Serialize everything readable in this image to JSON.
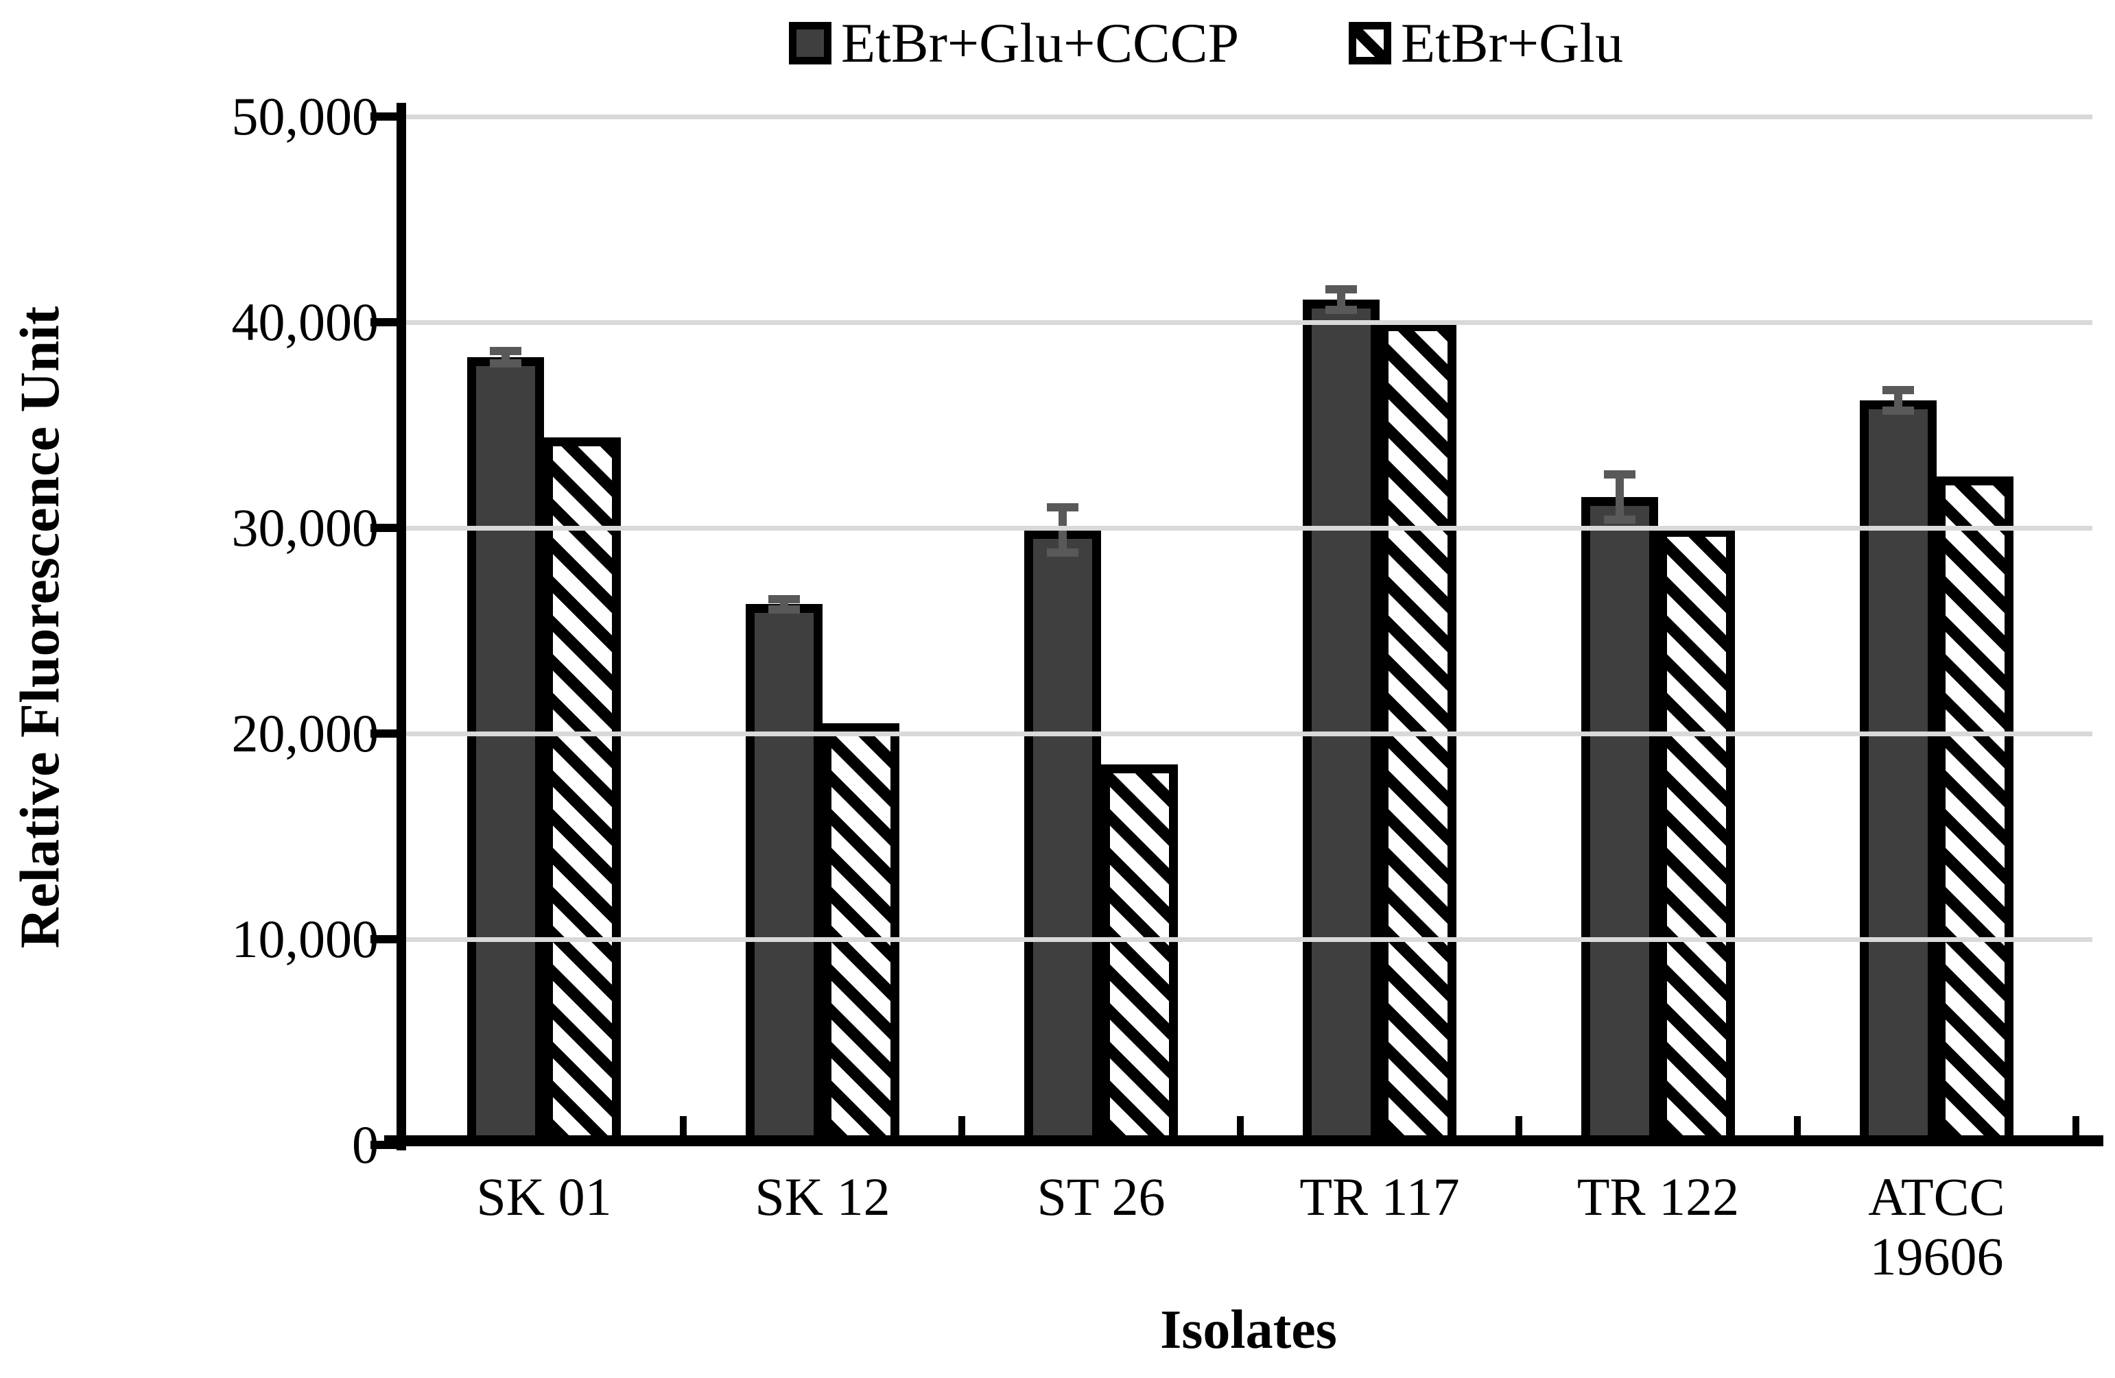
{
  "chart_data": {
    "type": "bar",
    "title": "",
    "categories": [
      "SK 01",
      "SK 12",
      "ST 26",
      "TR 117",
      "TR 122",
      "ATCC\n19606"
    ],
    "series": [
      {
        "name": "EtBr+Glu+CCCP",
        "style": "solid-dark",
        "values": [
          38300,
          26300,
          29900,
          41100,
          31500,
          36200
        ],
        "errors": [
          300,
          250,
          1100,
          500,
          1100,
          500
        ]
      },
      {
        "name": "EtBr+Glu",
        "style": "hatched-diagonal",
        "values": [
          34400,
          20500,
          18500,
          40000,
          30000,
          32500
        ],
        "errors": [
          0,
          0,
          0,
          0,
          0,
          0
        ]
      }
    ],
    "xlabel": "Isolates",
    "ylabel": "Relative Fluorescence Unit",
    "ylim": [
      0,
      50000
    ],
    "ytick_step": 10000,
    "yticks": [
      {
        "value": 0,
        "label": "0"
      },
      {
        "value": 10000,
        "label": "10,000"
      },
      {
        "value": 20000,
        "label": "20,000"
      },
      {
        "value": 30000,
        "label": "30,000"
      },
      {
        "value": 40000,
        "label": "40,000"
      },
      {
        "value": 50000,
        "label": "50,000"
      }
    ],
    "grid": "horizontal",
    "legend_position": "top-center",
    "colors": {
      "bar_fill": "#3f3f3f",
      "bar_border": "#000000",
      "hatch_stripe": "#000000",
      "error_bar": "#595959",
      "gridline": "#d9d9d9",
      "axis": "#000000",
      "text": "#000000",
      "background": "#ffffff"
    }
  }
}
